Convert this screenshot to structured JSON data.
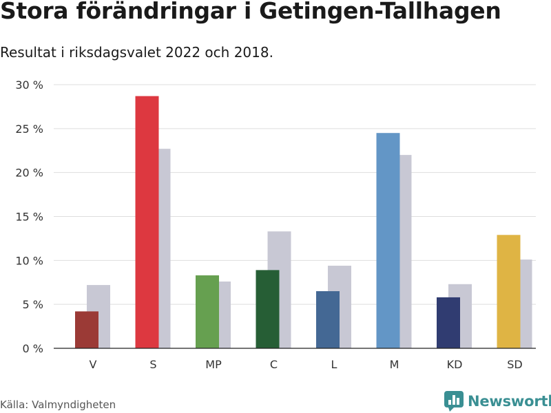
{
  "title": "Stora förändringar i Getingen-Tallhagen",
  "subtitle": "Resultat i riksdagsvalet 2022 och 2018.",
  "source": "Källa: Valmyndigheten",
  "brand": {
    "name": "Newsworthy",
    "icon": "bar-chart-logo-icon",
    "color": "#3a8f93"
  },
  "chart_data": {
    "type": "bar",
    "title": "Stora förändringar i Getingen-Tallhagen",
    "subtitle": "Resultat i riksdagsvalet 2022 och 2018.",
    "categories": [
      "V",
      "S",
      "MP",
      "C",
      "L",
      "M",
      "KD",
      "SD"
    ],
    "series": [
      {
        "values": [
          4.2,
          28.7,
          8.3,
          8.9,
          6.5,
          24.5,
          5.8,
          12.9
        ],
        "colors": [
          "#9b3a36",
          "#dd3840",
          "#66a050",
          "#265e35",
          "#446894",
          "#6396c6",
          "#303c71",
          "#dfb444"
        ]
      },
      {
        "values": [
          7.2,
          22.7,
          7.6,
          13.3,
          9.4,
          22.0,
          7.3,
          10.1
        ],
        "color": "#c8c8d4"
      }
    ],
    "ylim": [
      0,
      30
    ],
    "yticks": [
      0,
      5,
      10,
      15,
      20,
      25,
      30
    ],
    "ytick_labels": [
      "0 %",
      "5 %",
      "10 %",
      "15 %",
      "20 %",
      "25 %",
      "30 %"
    ],
    "grid": true,
    "legend": "none"
  }
}
